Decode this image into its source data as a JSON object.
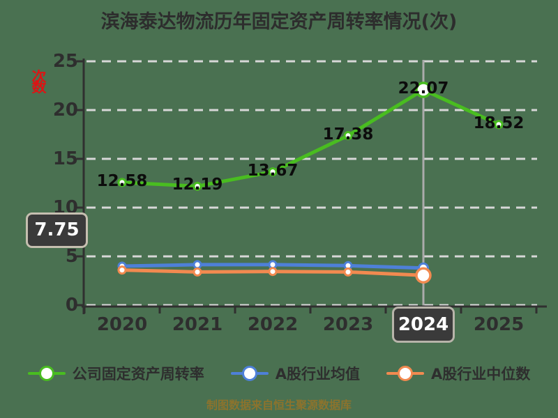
{
  "title": "滨海泰达物流历年固定资产周转率情况(次)",
  "y_axis": {
    "unit_label": "次数",
    "ticks": [
      0,
      5,
      10,
      15,
      20,
      25
    ],
    "range": [
      0,
      25
    ]
  },
  "axis_pointer": {
    "y_value": "7.75",
    "category": "2024",
    "category_index": 4
  },
  "chart_data": {
    "type": "line",
    "title": "滨海泰达物流历年固定资产周转率情况(次)",
    "categories": [
      "2020",
      "2021",
      "2022",
      "2023",
      "2024",
      "2025"
    ],
    "series": [
      {
        "name": "公司固定资产周转率",
        "color": "#49bd20",
        "values": [
          12.58,
          12.19,
          13.67,
          17.38,
          22.07,
          18.52
        ],
        "show_labels": true
      },
      {
        "name": "A股行业均值",
        "color": "#4e80d8",
        "values": [
          4.0,
          4.15,
          4.15,
          4.05,
          3.8,
          null
        ],
        "show_labels": false
      },
      {
        "name": "A股行业中位数",
        "color": "#f28a50",
        "values": [
          3.6,
          3.4,
          3.45,
          3.4,
          3.05,
          null
        ],
        "show_labels": false
      }
    ],
    "ylim": [
      0,
      25
    ],
    "grid": "dashed horizontal",
    "legend_position": "bottom"
  },
  "footer": "制图数据来自恒生聚源数据库",
  "colors": {
    "background": "#4a7151",
    "gridline": "#d7d7d7",
    "axis": "#303030",
    "pointer_line": "#ababab",
    "tooltip_bg": "#3a3a3a",
    "tooltip_border": "#c6bfb0",
    "unit_label": "#dd1414",
    "footer_text": "#8c732d",
    "data_label": "#0c0c0c"
  }
}
